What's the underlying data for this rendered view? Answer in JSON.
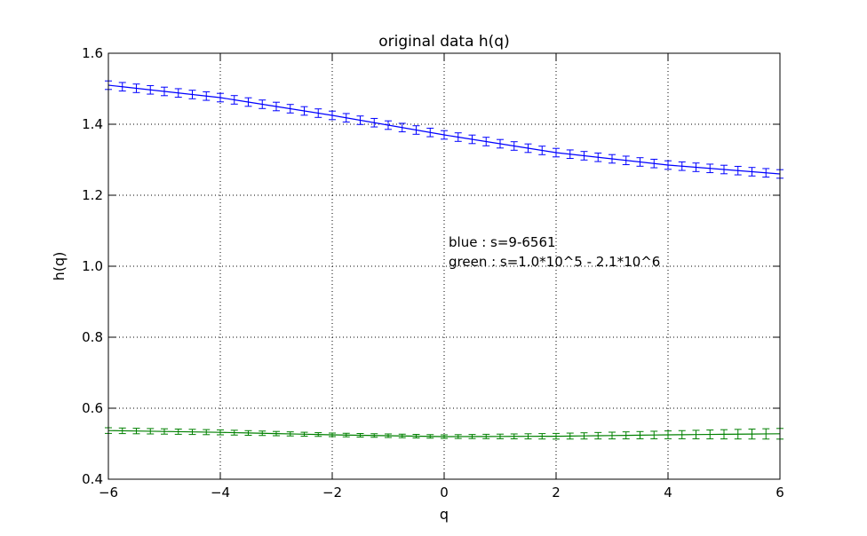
{
  "chart_data": {
    "type": "line",
    "title": "original data h(q)",
    "xlabel": "q",
    "ylabel": "h(q)",
    "xlim": [
      -6,
      6
    ],
    "ylim": [
      0.4,
      1.6
    ],
    "xticks": [
      -6,
      -4,
      -2,
      0,
      2,
      4,
      6
    ],
    "xtick_labels": [
      "−6",
      "−4",
      "−2",
      "0",
      "2",
      "4",
      "6"
    ],
    "yticks": [
      0.4,
      0.6,
      0.8,
      1.0,
      1.2,
      1.4,
      1.6
    ],
    "ytick_labels": [
      "0.4",
      "0.6",
      "0.8",
      "1.0",
      "1.2",
      "1.4",
      "1.6"
    ],
    "grid": true,
    "annotations": [
      "blue : s=9-6561",
      "green : s=1.0*10^5 - 2.1*10^6"
    ],
    "series": [
      {
        "color": "#0000ff",
        "x": [
          -6,
          -4,
          -2,
          0,
          2,
          4,
          6
        ],
        "y": [
          1.51,
          1.475,
          1.425,
          1.37,
          1.32,
          1.285,
          1.26
        ],
        "yerr": 0.012
      },
      {
        "color": "#008000",
        "x": [
          -6,
          -4,
          -2,
          0,
          2,
          4,
          6
        ],
        "y": [
          0.537,
          0.532,
          0.525,
          0.52,
          0.521,
          0.525,
          0.528
        ],
        "yerr": [
          0.008,
          0.007,
          0.005,
          0.005,
          0.008,
          0.011,
          0.015
        ]
      }
    ]
  }
}
